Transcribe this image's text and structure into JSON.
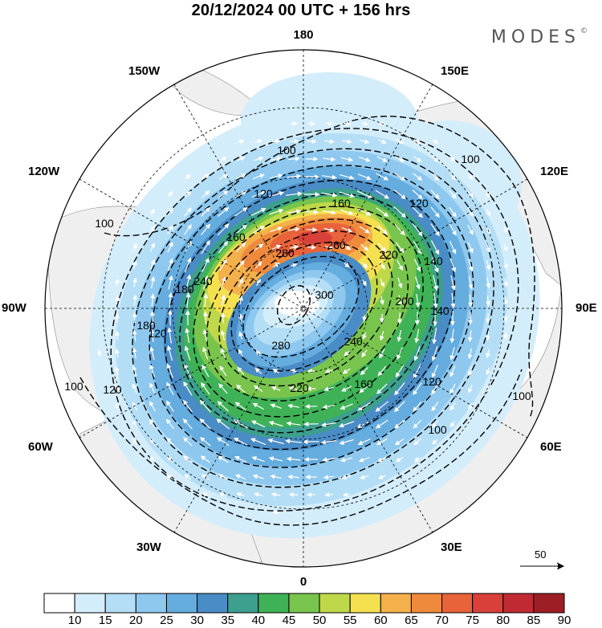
{
  "title": "20/12/2024  00 UTC  + 156 hrs",
  "brand": "MODES",
  "brand_mark": "©",
  "map": {
    "projection": "north-polar-stereographic",
    "longitude_labels": {
      "top": "180",
      "top_left": "150W",
      "top_right": "150E",
      "upper_left": "120W",
      "upper_right": "120E",
      "left": "90W",
      "right": "90E",
      "lower_left": "60W",
      "lower_right": "60E",
      "bottom_left": "30W",
      "bottom_right": "30E",
      "bottom": "0"
    },
    "contour_labels": [
      "100",
      "100",
      "100",
      "100",
      "100",
      "100",
      "120",
      "120",
      "120",
      "120",
      "120",
      "140",
      "140",
      "160",
      "160",
      "160",
      "180",
      "180",
      "200",
      "220",
      "220",
      "240",
      "240",
      "260",
      "280",
      "280",
      "300"
    ],
    "land_color": "#f0f0f0",
    "wind_vector_color": "#ffffff"
  },
  "colorbar": {
    "labels": [
      "10",
      "15",
      "20",
      "25",
      "30",
      "35",
      "40",
      "45",
      "50",
      "55",
      "60",
      "65",
      "70",
      "75",
      "80",
      "85",
      "90"
    ],
    "colors": [
      "#ffffff",
      "#d4edfb",
      "#b4def6",
      "#8ec8ef",
      "#65acdf",
      "#4a8cc6",
      "#3d9f8e",
      "#3fb257",
      "#78c44d",
      "#bfd84a",
      "#f5e050",
      "#f4b04a",
      "#ef8a3c",
      "#e8623a",
      "#d9403a",
      "#c02a32",
      "#9e1e25"
    ]
  },
  "vector_scale": {
    "label": "50"
  }
}
